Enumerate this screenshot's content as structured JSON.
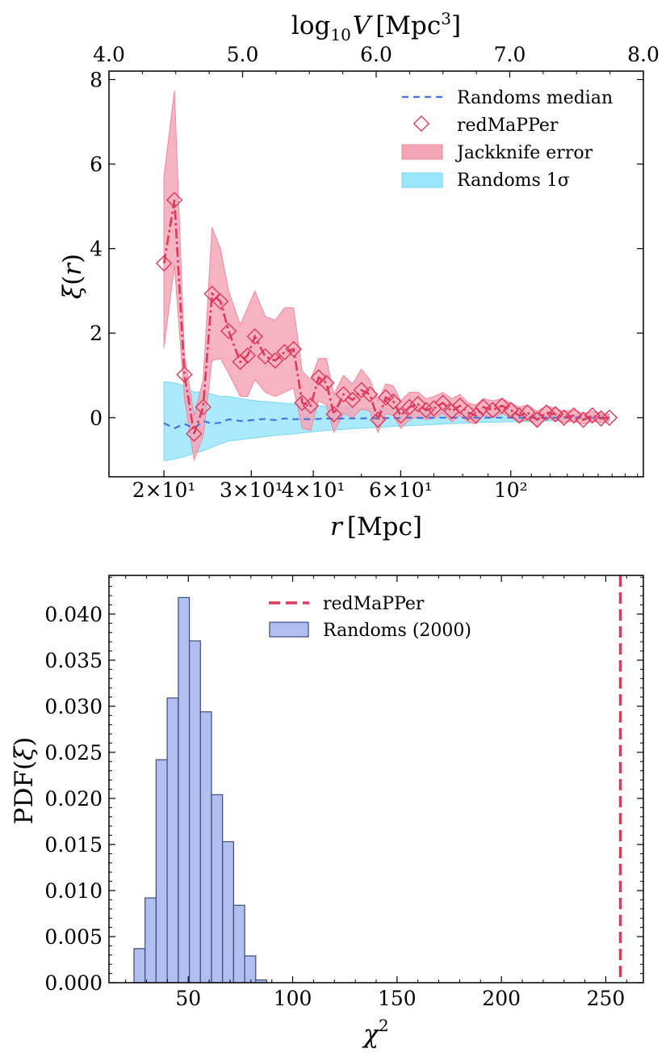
{
  "chart_data": [
    {
      "type": "line",
      "panel": "top",
      "xscale": "log",
      "xlabel": "r [Mpc]",
      "ylabel": "ξ(r)",
      "top_xlabel": "log10 V [Mpc³]",
      "xlim": [
        15.5,
        185
      ],
      "ylim": [
        -1.4,
        8.2
      ],
      "x_tick_labels": [
        "2×10¹",
        "3×10¹",
        "4×10¹",
        "6×10¹",
        "10²"
      ],
      "x_tick_values": [
        20,
        30,
        40,
        60,
        100
      ],
      "y_tick_labels": [
        "0",
        "2",
        "4",
        "6",
        "8"
      ],
      "y_tick_values": [
        0,
        2,
        4,
        6,
        8
      ],
      "top_tick_labels": [
        "4.0",
        "5.0",
        "6.0",
        "7.0",
        "8.0"
      ],
      "top_tick_values": [
        4,
        5,
        6,
        7,
        8
      ],
      "legend": {
        "position": "top-right",
        "entries": [
          "Randoms median",
          "redMaPPer",
          "Jackknife error",
          "Randoms 1σ"
        ]
      },
      "colors": {
        "redmapper": "#e0385c",
        "jackknife_fill": "#f4a6b6",
        "randoms_fill": "#9be6fb",
        "median": "#4a72e0"
      },
      "x": [
        20.0,
        21.0,
        22.0,
        23.0,
        24.0,
        25.0,
        26.0,
        27.0,
        28.5,
        29.5,
        30.5,
        32.0,
        33.5,
        35.0,
        36.5,
        38.0,
        39.5,
        41.0,
        42.5,
        44.0,
        46.0,
        48.0,
        50.0,
        52.0,
        54.0,
        56.0,
        58.0,
        60.0,
        62.5,
        65.0,
        67.5,
        70.0,
        73.0,
        76.0,
        79.0,
        82.0,
        85.0,
        88.0,
        92.0,
        96.0,
        100.0,
        104.0,
        108.0,
        113.0,
        118.0,
        123.0,
        128.0,
        134.0,
        140.0,
        146.0,
        152.0,
        158.0
      ],
      "series": [
        {
          "name": "redMaPPer",
          "values": [
            3.65,
            5.15,
            1.02,
            -0.38,
            0.25,
            2.93,
            2.75,
            2.05,
            1.32,
            1.47,
            1.92,
            1.45,
            1.35,
            1.55,
            1.62,
            0.35,
            0.28,
            0.95,
            0.82,
            0.08,
            0.55,
            0.42,
            0.65,
            0.55,
            -0.05,
            0.48,
            0.38,
            0.05,
            0.25,
            0.32,
            0.18,
            0.22,
            0.35,
            0.15,
            0.28,
            0.12,
            0.05,
            0.25,
            0.18,
            0.28,
            0.18,
            0.05,
            0.12,
            -0.05,
            0.12,
            0.08,
            0.0,
            0.05,
            -0.05,
            0.05,
            -0.02,
            0.0
          ]
        },
        {
          "name": "Jackknife error upper",
          "values": [
            5.7,
            7.75,
            1.5,
            0.05,
            0.9,
            4.5,
            4.0,
            3.0,
            2.2,
            2.6,
            3.0,
            2.4,
            2.3,
            2.6,
            2.6,
            1.1,
            0.9,
            1.4,
            1.4,
            0.55,
            1.0,
            0.8,
            1.15,
            0.9,
            0.4,
            0.8,
            0.75,
            0.4,
            0.6,
            0.6,
            0.45,
            0.5,
            0.6,
            0.45,
            0.55,
            0.35,
            0.3,
            0.45,
            0.4,
            0.45,
            0.35,
            0.25,
            0.3,
            0.15,
            0.28,
            0.22,
            0.15,
            0.18,
            0.1,
            0.15,
            0.1,
            0.08
          ]
        },
        {
          "name": "Jackknife error lower",
          "values": [
            1.65,
            3.6,
            0.45,
            -1.0,
            -0.45,
            1.35,
            1.4,
            1.05,
            0.5,
            0.5,
            0.9,
            0.6,
            0.5,
            0.6,
            0.7,
            -0.25,
            -0.3,
            0.4,
            0.3,
            -0.35,
            0.1,
            0.0,
            0.2,
            0.15,
            -0.35,
            0.1,
            0.05,
            -0.25,
            -0.05,
            0.02,
            -0.05,
            -0.02,
            0.1,
            -0.1,
            0.05,
            -0.1,
            -0.15,
            0.05,
            0.0,
            0.1,
            0.0,
            -0.12,
            -0.05,
            -0.2,
            -0.02,
            -0.05,
            -0.12,
            -0.08,
            -0.15,
            -0.08,
            -0.12,
            -0.08
          ]
        },
        {
          "name": "Randoms median",
          "values": [
            -0.13,
            -0.25,
            -0.15,
            -0.25,
            -0.08,
            -0.14,
            -0.12,
            -0.04,
            -0.08,
            -0.07,
            -0.05,
            -0.03,
            -0.06,
            -0.02,
            -0.04,
            -0.03,
            -0.04,
            -0.03,
            -0.02,
            -0.03,
            -0.02,
            -0.02,
            -0.02,
            -0.01,
            -0.02,
            -0.01,
            -0.01,
            -0.01,
            0.0,
            -0.01,
            0.0,
            0.0,
            0.0,
            0.0,
            0.0,
            0.0,
            0.0,
            0.0,
            0.0,
            0.0,
            0.0,
            0.0,
            0.0,
            0.0,
            0.0,
            0.0,
            0.0,
            0.0,
            0.0,
            0.0,
            0.0,
            0.0
          ]
        },
        {
          "name": "Randoms 1σ upper",
          "values": [
            0.85,
            0.82,
            0.75,
            0.6,
            0.62,
            0.55,
            0.5,
            0.5,
            0.45,
            0.42,
            0.4,
            0.38,
            0.36,
            0.34,
            0.32,
            0.31,
            0.3,
            0.28,
            0.27,
            0.26,
            0.25,
            0.24,
            0.23,
            0.22,
            0.21,
            0.2,
            0.19,
            0.18,
            0.17,
            0.16,
            0.15,
            0.15,
            0.14,
            0.13,
            0.13,
            0.12,
            0.11,
            0.11,
            0.1,
            0.1,
            0.09,
            0.09,
            0.08,
            0.08,
            0.07,
            0.07,
            0.07,
            0.06,
            0.06,
            0.06,
            0.05,
            0.05
          ]
        },
        {
          "name": "Randoms 1σ lower",
          "values": [
            -1.02,
            -0.98,
            -0.92,
            -0.85,
            -0.78,
            -0.7,
            -0.62,
            -0.55,
            -0.52,
            -0.5,
            -0.48,
            -0.45,
            -0.42,
            -0.4,
            -0.38,
            -0.36,
            -0.34,
            -0.32,
            -0.3,
            -0.29,
            -0.28,
            -0.26,
            -0.25,
            -0.24,
            -0.23,
            -0.22,
            -0.21,
            -0.2,
            -0.19,
            -0.18,
            -0.17,
            -0.16,
            -0.15,
            -0.14,
            -0.13,
            -0.13,
            -0.12,
            -0.11,
            -0.11,
            -0.1,
            -0.1,
            -0.09,
            -0.09,
            -0.08,
            -0.08,
            -0.07,
            -0.07,
            -0.07,
            -0.06,
            -0.06,
            -0.06,
            -0.05
          ]
        }
      ]
    },
    {
      "type": "histogram",
      "panel": "bottom",
      "xlabel": "χ²",
      "ylabel": "PDF(ξ)",
      "xlim": [
        12,
        268
      ],
      "ylim": [
        0,
        0.0442
      ],
      "x_tick_labels": [
        "50",
        "100",
        "150",
        "200",
        "250"
      ],
      "x_tick_values": [
        50,
        100,
        150,
        200,
        250
      ],
      "y_tick_labels": [
        "0.000",
        "0.005",
        "0.010",
        "0.015",
        "0.020",
        "0.025",
        "0.030",
        "0.035",
        "0.040"
      ],
      "y_tick_values": [
        0,
        0.005,
        0.01,
        0.015,
        0.02,
        0.025,
        0.03,
        0.035,
        0.04
      ],
      "legend": {
        "position": "top-center",
        "entries": [
          "redMaPPer",
          "Randoms (2000)"
        ]
      },
      "colors": {
        "bars": "#b0bfef",
        "bar_edge": "#3f4a78",
        "redmapper_line": "#e0385c"
      },
      "bin_edges": [
        24,
        29.3,
        34.6,
        39.9,
        45.2,
        50.5,
        55.8,
        61.1,
        66.4,
        71.7,
        77.0,
        82.3,
        87.6
      ],
      "values": [
        0.0037,
        0.0092,
        0.0242,
        0.0309,
        0.0418,
        0.0371,
        0.0294,
        0.0204,
        0.0153,
        0.0084,
        0.0029,
        0.0003
      ],
      "redmapper_chi2": 257
    }
  ]
}
